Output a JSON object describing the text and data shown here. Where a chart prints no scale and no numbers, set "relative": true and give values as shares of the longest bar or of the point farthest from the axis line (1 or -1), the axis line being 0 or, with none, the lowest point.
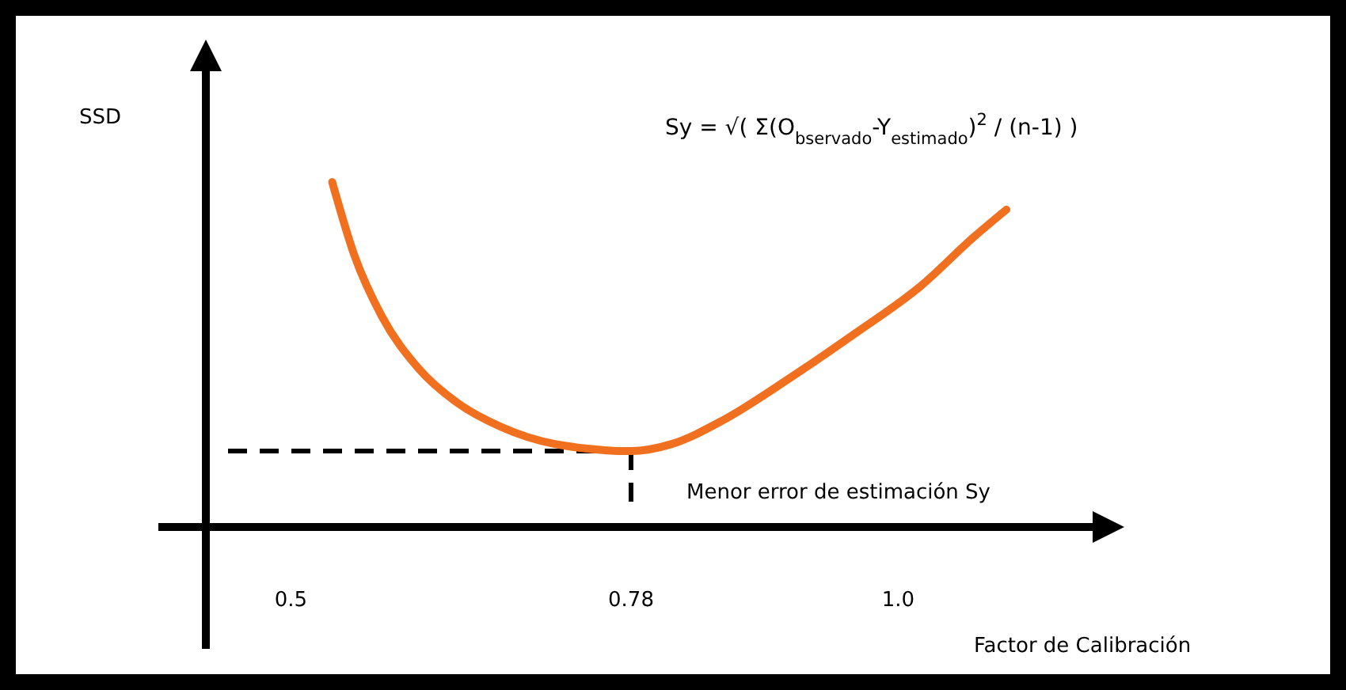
{
  "chart_data": {
    "type": "line",
    "relative": true,
    "xlabel": "Factor de Calibración",
    "ylabel": "SSD",
    "xlim": [
      0.43,
      1.16
    ],
    "xticks": [
      0.5,
      0.78,
      {
        "value": 1,
        "label": "1.0"
      }
    ],
    "x": [
      0.534,
      0.552,
      0.575,
      0.605,
      0.637,
      0.673,
      0.718,
      0.78,
      0.813,
      0.856,
      0.91,
      0.964,
      1.019,
      1.062,
      1.089
    ],
    "series": [
      {
        "color": "#f07020",
        "values": [
          1,
          0.79,
          0.61,
          0.46,
          0.36,
          0.29,
          0.24,
          0.22,
          0.24,
          0.31,
          0.43,
          0.56,
          0.7,
          0.84,
          0.92
        ]
      }
    ],
    "ref_lines": [
      {
        "axis": "x",
        "value": 0.78,
        "color": "#000000",
        "line_style": "dashed"
      },
      {
        "axis": "y",
        "value": 0.22,
        "color": "#000000",
        "line_style": "dashed"
      }
    ],
    "annotations": [
      "Menor error de estimación Sy",
      "Sy = √( Σ(O$_{bservado}$-Y$_{estimado}$)$^{2}$ / (n-1) )"
    ]
  }
}
